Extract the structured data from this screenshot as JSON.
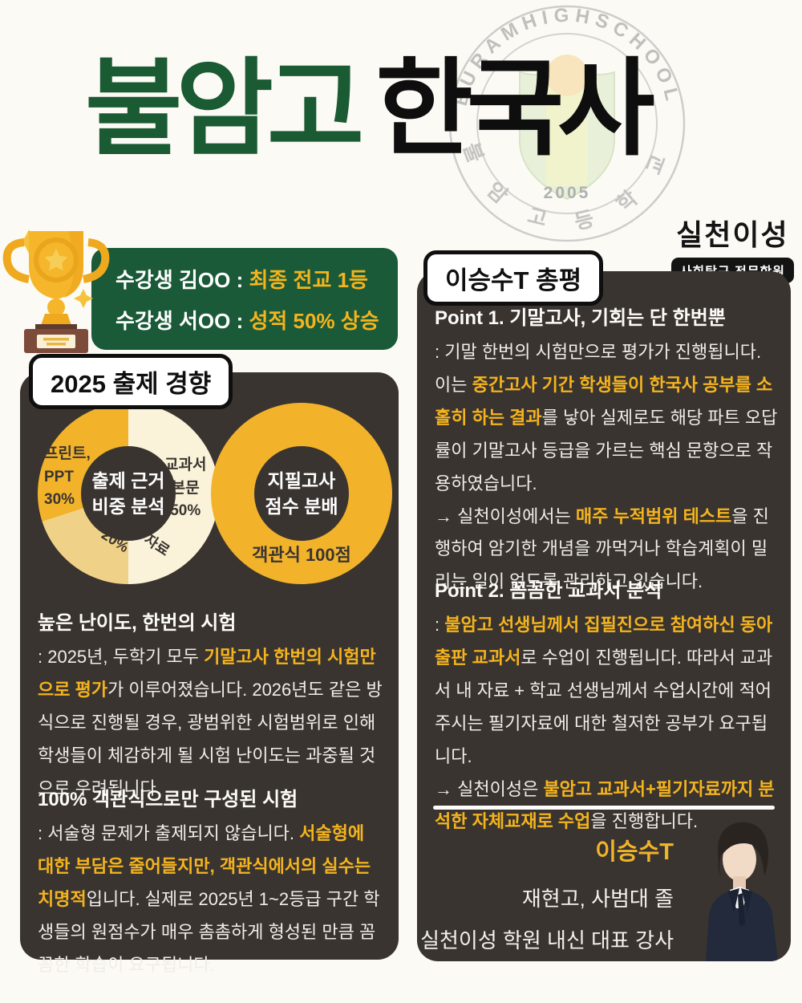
{
  "page": {
    "background": "#FCFAF4",
    "panel_color": "#3A3430",
    "accent_gold": "#F4B41E",
    "title_green": "#1A5B33",
    "badge_green": "#1A5A38"
  },
  "header": {
    "title_school": "불암고",
    "title_subject": "한국사",
    "emblem": {
      "arc_text": "BURAMHIGHSCHOOL",
      "year": "2005",
      "bottom_text": "불 암 고 등 학 교"
    },
    "brand": {
      "logo": "실천이성",
      "badge": "사회탐구 전문학원"
    }
  },
  "results_badge": {
    "lines": [
      [
        {
          "t": "수강생 김OO : "
        },
        {
          "t": "최종 전교 1등",
          "hl": true
        }
      ],
      [
        {
          "t": "수강생 서OO : "
        },
        {
          "t": "성적 50% 상승",
          "hl": true
        }
      ]
    ]
  },
  "left_panel": {
    "badge": "2025 출제 경향",
    "sections": [
      {
        "heading": "높은 난이도, 한번의 시험",
        "body": [
          {
            "t": ": 2025년, 두학기 모두 "
          },
          {
            "t": "기말고사 한번의 시험만으로 평가",
            "hl": true
          },
          {
            "t": "가 이루어졌습니다.  2026년도 같은 방식으로 진행될 경우, 광범위한 시험범위로 인해 학생들이 체감하게 될 시험 난이도는 과중될 것으로 우려됩니다."
          }
        ]
      },
      {
        "heading": "100% 객관식으로만 구성된 시험",
        "body": [
          {
            "t": ": 서술형 문제가 출제되지 않습니다. "
          },
          {
            "t": "서술형에 대한 부담은 줄어들지만, 객관식에서의 실수는 치명적",
            "hl": true
          },
          {
            "t": "입니다. 실제로 2025년 1~2등급 구간 학생들의 원점수가 매우 촘촘하게 형성된 만큼 꼼꼼한 학습이 요구됩니다."
          }
        ]
      }
    ]
  },
  "right_panel": {
    "badge": "이승수T 총평",
    "points": [
      {
        "heading": "Point 1. 기말고사, 기회는 단 한번뿐",
        "body": [
          {
            "t": ": 기말 한번의 시험만으로 평가가 진행됩니다. 이는 "
          },
          {
            "t": "중간고사 기간 학생들이 한국사 공부를 소홀히 하는 결과",
            "hl": true
          },
          {
            "t": "를 낳아 실제로도 해당 파트 오답률이 기말고사 등급을 가르는 핵심 문항으로 작용하였습니다."
          },
          {
            "br": true
          },
          {
            "t": "→ 실천이성에서는 "
          },
          {
            "t": "매주 누적범위 테스트",
            "hl": true
          },
          {
            "t": "을 진행하여 암기한 개념을 까먹거나 학습계획이 밀리는 일이 없도록 관리하고 있습니다."
          }
        ]
      },
      {
        "heading": "Point 2. 꼼꼼한 교과서 분석",
        "body": [
          {
            "t": ": "
          },
          {
            "t": "불암고 선생님께서 집필진으로 참여하신 동아 출판 교과서",
            "hl": true
          },
          {
            "t": "로 수업이 진행됩니다. 따라서 교과서 내 자료 + 학교 선생님께서 수업시간에 적어주시는 필기자료에 대한 철저한 공부가 요구됩니다."
          },
          {
            "br": true
          },
          {
            "t": "→ 실천이성은 "
          },
          {
            "t": "불암고 교과서+필기자료까지 분석한 자체교재로 수업",
            "hl": true
          },
          {
            "t": "을 진행합니다."
          }
        ]
      }
    ],
    "instructor": {
      "name": "이승수T",
      "credential1": "재현고, 사범대 졸",
      "credential2": "실천이성 학원 내신 대표 강사"
    }
  },
  "chart_data": [
    {
      "type": "pie",
      "title": "출제 근거 비중 분석",
      "center_label": "출제 근거\n비중 분석",
      "slices": [
        {
          "label": "교과서 본문",
          "value": 50,
          "color": "#FAF3DA"
        },
        {
          "label": "교과서 탐구 자료",
          "value": 20,
          "color": "#EFD287"
        },
        {
          "label": "프린트, PPT",
          "value": 30,
          "color": "#F2B32B"
        }
      ],
      "labels": {
        "ppt": "프린트,\nPPT\n30%",
        "textbook": "교과서\n본문\n50%",
        "inquiry": "교과서 탐구 자료\n20%"
      }
    },
    {
      "type": "pie",
      "title": "지필고사 점수 분배",
      "center_label": "지필고사\n점수 분배",
      "slices": [
        {
          "label": "객관식",
          "value": 100,
          "color": "#F2B32B"
        }
      ],
      "note": "객관식 100점"
    }
  ]
}
